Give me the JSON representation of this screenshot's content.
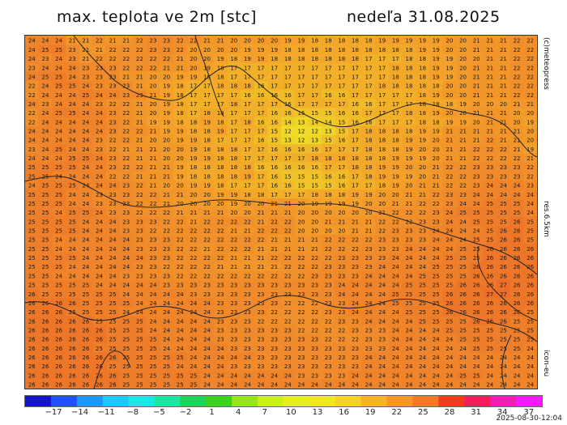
{
  "header": {
    "title": "max. teplota ve 2m [stc]",
    "date": "nedeľa 31.08.2025"
  },
  "side_labels": {
    "credit": "(c)meteopress",
    "resolution": "res.6.5km",
    "model": "icon-eu"
  },
  "footer": {
    "model_run": "2025-08-30-12:04"
  },
  "colorbar": {
    "tick_labels": [
      "-17",
      "-14",
      "-11",
      "-8",
      "-5",
      "-2",
      "1",
      "4",
      "7",
      "10",
      "13",
      "16",
      "19",
      "22",
      "25",
      "28",
      "31",
      "34",
      "37"
    ],
    "colors": [
      "#1414c8",
      "#1e50ff",
      "#1e96ff",
      "#1ec8ff",
      "#1ee6e6",
      "#1ee6a0",
      "#1ed25a",
      "#3cd21e",
      "#96e61e",
      "#c8f01e",
      "#e6f01e",
      "#f0e628",
      "#f5d228",
      "#f5b428",
      "#f59628",
      "#f57828",
      "#f03c1e",
      "#f01e5a",
      "#f01eb4",
      "#f01eff"
    ]
  },
  "map_data": {
    "values_rows": [
      "24 24 24 21 21 22 21 21 22 23 23 22 22 21 21 20 20 20 20 19 19 18 18 18 18 18 19 19 19 19 19 20 20 21 21 21 22 22",
      "24 25 25 23 21 21 22 22 22 23 23 22 20 20 20 20 19 19 19 18 18 18 18 18 18 18 18 18 18 19 19 20 20 21 21 21 22 22",
      "24 23 24 23 21 22 22 22 22 22 22 21 20 20 19 18 19 19 18 18 18 18 18 18 18 17 17 17 18 18 19 19 20 20 21 21 22 22",
      "23 24 24 24 23 23 23 22 22 22 21 21 20 19 18 17 17 17 17 17 17 17 17 17 17 17 17 18 18 18 19 19 20 21 21 21 22 22",
      "24 25 25 24 23 23 23 21 21 20 20 19 19 18 18 17 17 17 17 17 17 17 17 17 17 17 17 18 18 18 19 19 20 21 21 21 22 22",
      "22 24 25 25 24 23 23 23 21 20 19 18 17 17 18 18 18 16 17 17 17 17 17 17 17 17 18 18 18 18 18 20 20 21 21 21 22 22",
      "22 24 24 24 25 24 24 23 23 21 19 18 17 17 17 17 16 16 16 16 17 17 16 16 17 17 17 17 17 18 19 20 20 21 21 21 22 22",
      "24 23 24 24 24 23 22 22 21 20 19 18 17 17 17 18 17 17 17 16 17 17 17 17 16 16 17 17 17 18 18 18 19 20 20 20 21 21",
      "22 24 25 25 24 24 23 22 21 20 19 18 17 18 18 17 17 17 16 16 15 15 15 16 16 17 17 17 18 18 19 20 20 21 21 21 20 20",
      "22 24 24 24 24 24 23 22 21 19 19 18 18 19 18 17 18 16 16 14 13 14 14 15 16 16 17 17 17 18 18 19 19 20 21 21 20 19",
      "24 24 24 24 24 24 23 22 22 21 19 19 18 18 19 17 17 17 15 12 12 12 13 15 17 18 18 18 18 19 19 21 21 21 21 21 21 20",
      "24 24 24 24 24 23 22 22 21 20 20 19 19 18 17 17 17 16 15 13 12 13 15 16 17 18 18 18 19 19 20 21 21 21 22 21 21 20",
      "23 24 25 24 24 23 22 21 21 21 20 20 19 18 18 18 17 17 16 16 16 16 17 17 17 18 18 18 19 20 20 21 21 22 22 22 21 19",
      "24 24 24 25 25 24 23 22 21 21 20 20 19 19 18 18 17 17 17 17 17 18 18 18 18 18 18 19 19 19 20 21 21 22 22 22 22 21",
      "25 25 25 25 24 24 23 22 22 21 21 19 18 18 18 18 18 16 16 16 16 16 17 17 18 18 19 19 20 20 21 22 22 23 23 23 23 22",
      "25 25 24 24 24 24 22 22 21 21 21 19 18 18 18 18 19 17 16 15 15 15 16 16 17 18 19 19 19 20 21 22 22 23 23 23 23 22",
      "24 25 25 25 24 24 24 23 22 21 20 20 19 19 18 17 17 17 16 16 15 15 15 16 17 17 18 19 20 21 21 22 22 23 24 24 24 23",
      "25 25 25 24 24 23 23 23 22 22 21 21 20 20 19 19 18 18 17 17 17 18 18 18 19 19 20 20 21 21 22 23 23 24 24 24 24 24",
      "25 25 25 24 24 23 23 23 22 22 21 20 20 20 20 19 20 20 21 21 20 19 19 19 19 20 20 21 21 22 22 23 24 24 25 25 25 24",
      "25 25 24 25 25 24 23 23 22 22 22 21 21 21 21 20 20 21 21 21 20 20 20 20 20 20 21 22 22 22 23 24 25 25 25 25 25 24",
      "25 25 25 25 24 24 24 23 23 23 22 22 21 22 22 22 22 21 22 22 20 20 21 21 21 21 22 22 22 23 23 24 24 25 25 25 26 25",
      "25 25 25 25 24 24 24 23 23 22 22 22 22 22 22 21 21 22 22 22 20 20 20 20 21 21 22 23 23 23 24 24 24 24 25 26 26 25",
      "25 25 24 24 24 24 24 24 23 23 23 22 22 22 22 22 22 22 21 21 21 21 22 22 22 22 23 23 23 23 24 24 24 25 25 26 26 25",
      "25 25 24 24 24 24 24 24 23 23 23 22 22 21 22 22 22 21 21 21 21 21 22 22 22 23 23 23 24 24 24 24 25 25 26 26 26 26",
      "25 25 25 25 24 24 24 24 24 23 23 22 22 22 22 21 21 21 22 22 22 22 22 23 23 23 23 24 24 24 24 25 25 25 26 26 26 26",
      "25 25 25 24 24 24 24 24 23 23 22 22 22 22 21 21 21 21 21 22 22 22 23 23 23 23 24 24 24 24 25 25 25 26 26 26 26 26",
      "25 25 24 24 24 24 24 23 23 23 23 22 22 22 22 22 22 22 22 22 22 23 23 23 23 24 24 24 24 25 25 25 25 26 26 26 26 26",
      "25 25 25 25 25 24 24 24 24 24 23 23 23 23 23 23 23 23 23 23 23 23 23 24 24 24 24 24 25 25 25 25 26 26 26 27 26 26",
      "26 25 25 25 25 25 25 24 24 24 24 24 23 23 23 23 23 23 23 23 23 23 23 24 24 24 24 25 25 25 25 26 26 26 27 27 26 26",
      "26 26 26 26 25 25 25 25 24 24 24 24 24 24 23 23 23 23 23 22 22 22 23 23 24 24 24 25 25 25 25 26 26 26 26 26 26 26",
      "26 26 26 25 25 25 25 24 24 24 24 24 24 24 23 23 23 23 22 22 22 22 23 23 24 24 24 24 25 25 25 26 26 26 26 26 26 25",
      "26 26 26 26 26 25 25 25 25 24 24 24 24 24 23 23 23 22 22 22 22 22 22 23 23 24 24 24 24 25 25 25 25 26 26 26 25 25",
      "26 26 26 26 26 26 25 25 25 24 24 24 24 24 23 23 23 23 23 23 22 22 22 22 23 23 23 24 24 24 24 25 25 25 25 25 25 25",
      "26 26 26 26 26 26 25 25 25 25 24 24 24 24 23 23 23 23 23 23 23 23 22 22 22 23 23 24 24 24 24 24 25 25 25 25 25 25",
      "26 26 26 26 26 25 25 25 25 25 24 24 24 24 24 23 23 23 23 23 23 23 23 23 23 23 23 24 24 24 24 24 24 25 25 25 25 24",
      "26 26 26 26 26 26 26 25 25 25 25 25 24 24 24 24 24 23 23 23 23 23 23 23 23 24 24 24 24 24 24 24 24 24 24 24 24 24",
      "26 26 26 26 26 26 25 25 25 25 25 24 24 24 24 23 23 23 23 23 23 23 23 23 23 24 24 24 24 24 24 24 24 24 24 24 24 24",
      "26 26 26 26 26 26 26 25 25 25 25 25 25 24 24 24 24 24 24 24 23 23 23 23 24 24 24 24 24 24 24 24 25 25 24 24 24 24",
      "26 26 26 26 26 26 26 25 25 25 25 25 25 24 24 24 24 24 24 24 24 24 24 24 24 24 24 24 24 24 24 24 24 24 24 24 24 24"
    ]
  }
}
